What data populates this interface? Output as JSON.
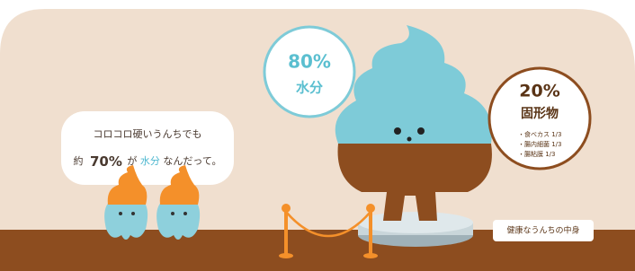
{
  "speech_bubble": {
    "line1": "コロコロ硬いうんちでも",
    "line2": {
      "prefix": "約",
      "percent": "70%",
      "particle": "が",
      "highlight": "水分",
      "suffix": "なんだって。"
    }
  },
  "water_callout": {
    "percent": "80%",
    "label": "水分"
  },
  "solid_callout": {
    "percent": "20%",
    "label": "固形物",
    "items": [
      "・食べカス 1/3",
      "・腸内細菌 1/3",
      "・腸粘膜 1/3"
    ]
  },
  "caption": "健康なうんちの中身"
}
